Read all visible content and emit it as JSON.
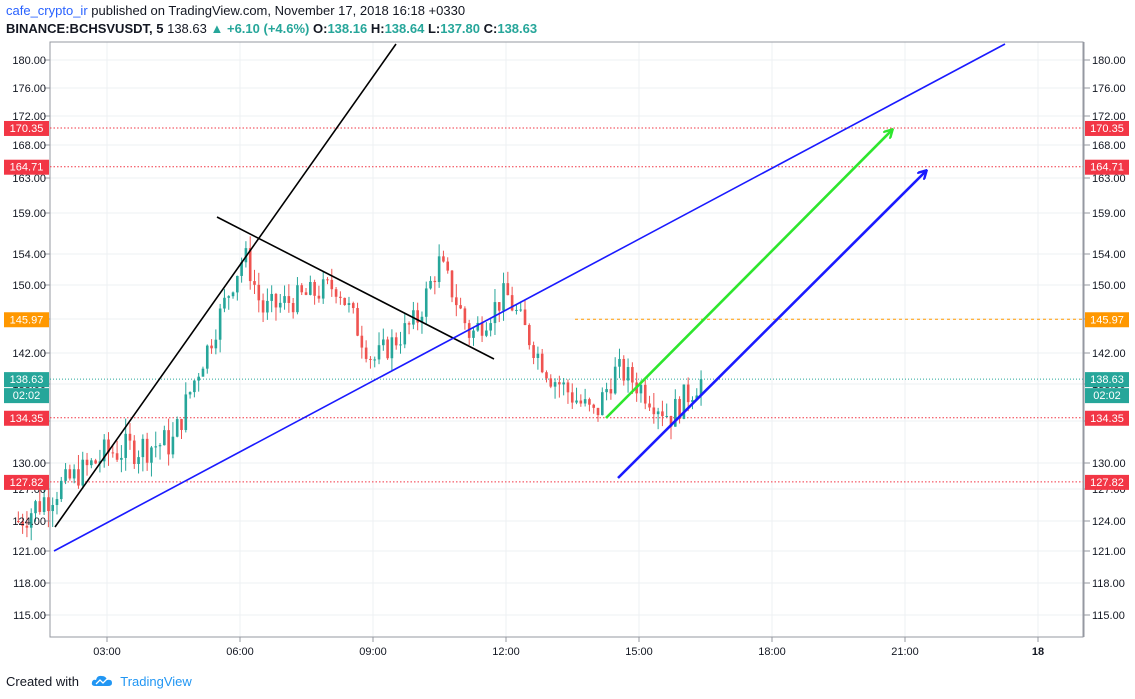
{
  "header": {
    "author": "cafe_crypto_ir",
    "published": "published on TradingView.com, November 17, 2018 16:18 +0330",
    "symbol": "BINANCE:BCHSVUSDT, 5",
    "last": "138.63",
    "change": "+6.10 (+4.6%)",
    "o_label": "O:",
    "o_value": "138.16",
    "h_label": "H:",
    "h_value": "138.64",
    "l_label": "L:",
    "l_value": "137.80",
    "c_label": "C:",
    "c_value": "138.63"
  },
  "footer": {
    "created_with": "Created with",
    "brand": "TradingView"
  },
  "colors": {
    "up": "#26a69a",
    "down": "#ef5350",
    "level_red": "#f23645",
    "level_orange": "#ff9800",
    "current": "#26a69a",
    "trend_blue": "#1a1aff",
    "trend_black": "#000000",
    "arrow_green": "#2ee62e",
    "grid": "#eef0f3"
  },
  "chart_data": {
    "type": "candlestick",
    "ylim": [
      112,
      184
    ],
    "y_ticks": [
      "115.00",
      "118.00",
      "121.00",
      "124.00",
      "127.00",
      "130.00",
      "134.00",
      "138.00",
      "142.00",
      "146.00",
      "150.00",
      "154.00",
      "159.00",
      "163.00",
      "168.00",
      "172.00",
      "176.00",
      "180.00"
    ],
    "x_ticks": [
      "03:00",
      "06:00",
      "09:00",
      "12:00",
      "15:00",
      "18:00",
      "21:00",
      "18"
    ],
    "price_labels": [
      {
        "value": 170.35,
        "text": "170.35",
        "style": "red"
      },
      {
        "value": 164.71,
        "text": "164.71",
        "style": "red"
      },
      {
        "value": 145.97,
        "text": "145.97",
        "style": "orange"
      },
      {
        "value": 138.63,
        "text": "138.63",
        "style": "current"
      },
      {
        "value": 134.35,
        "text": "134.35",
        "style": "red"
      },
      {
        "value": 127.82,
        "text": "127.82",
        "style": "red"
      }
    ],
    "countdown": "02:02",
    "candle_count": 160,
    "candle_path_hours": [
      1.0,
      3.0,
      4.5,
      6.1,
      6.5,
      8.2,
      9.0,
      10.0,
      10.5,
      11.2,
      12.0,
      13.0,
      14.0,
      14.5,
      15.3,
      15.7,
      16.4
    ],
    "candle_path_prices": [
      124.0,
      131.0,
      132.0,
      154.0,
      147.0,
      150.0,
      141.0,
      146.0,
      153.0,
      144.0,
      149.0,
      139.0,
      134.5,
      140.0,
      136.5,
      134.5,
      138.63
    ]
  }
}
